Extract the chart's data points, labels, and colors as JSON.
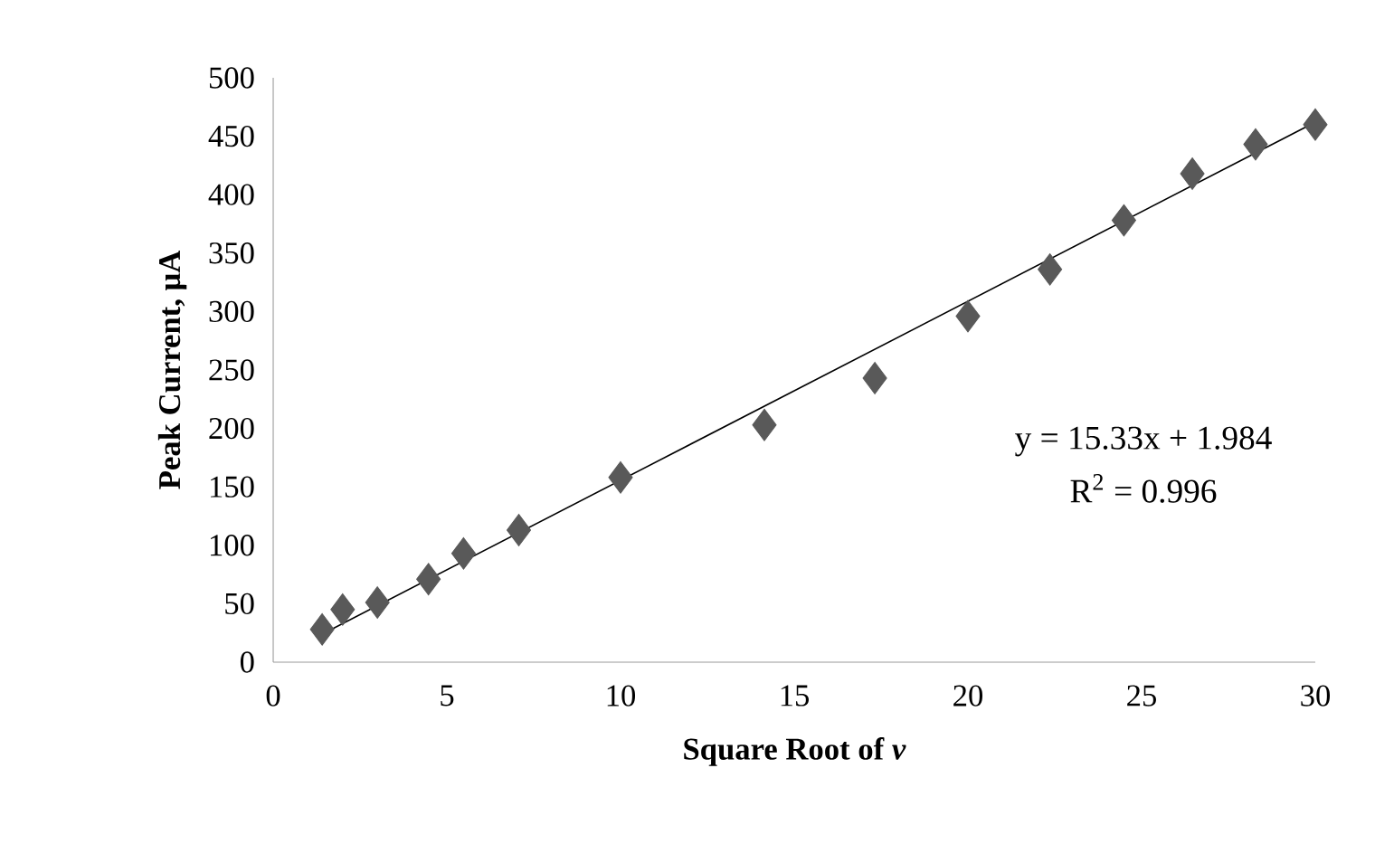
{
  "chart_data": {
    "type": "scatter",
    "xlabel": "Square Root of *v*",
    "ylabel": "Peak Current, μA",
    "marker": "diamond",
    "grid": false,
    "legend": false,
    "xlim": [
      0,
      30
    ],
    "ylim": [
      0,
      500
    ],
    "xticks": [
      0,
      5,
      10,
      15,
      20,
      25,
      30
    ],
    "yticks": [
      0,
      50,
      100,
      150,
      200,
      250,
      300,
      350,
      400,
      450,
      500
    ],
    "annotations": [
      "y = 15.33x + 1.984",
      "R$^{2}$ = 0.996"
    ],
    "series": [
      {
        "color": "#595959",
        "x": [
          1.41,
          2,
          3,
          4.47,
          5.48,
          7.07,
          10,
          14.14,
          17.32,
          20,
          22.36,
          24.49,
          26.46,
          28.28,
          30
        ],
        "values": [
          28,
          45,
          51,
          71,
          93,
          113,
          158,
          203,
          243,
          296,
          336,
          378,
          418,
          443,
          460
        ]
      },
      {
        "type": "line",
        "marker": "none",
        "color": "#000000",
        "x": [
          1.41,
          30
        ],
        "values": [
          24,
          462
        ]
      }
    ]
  }
}
